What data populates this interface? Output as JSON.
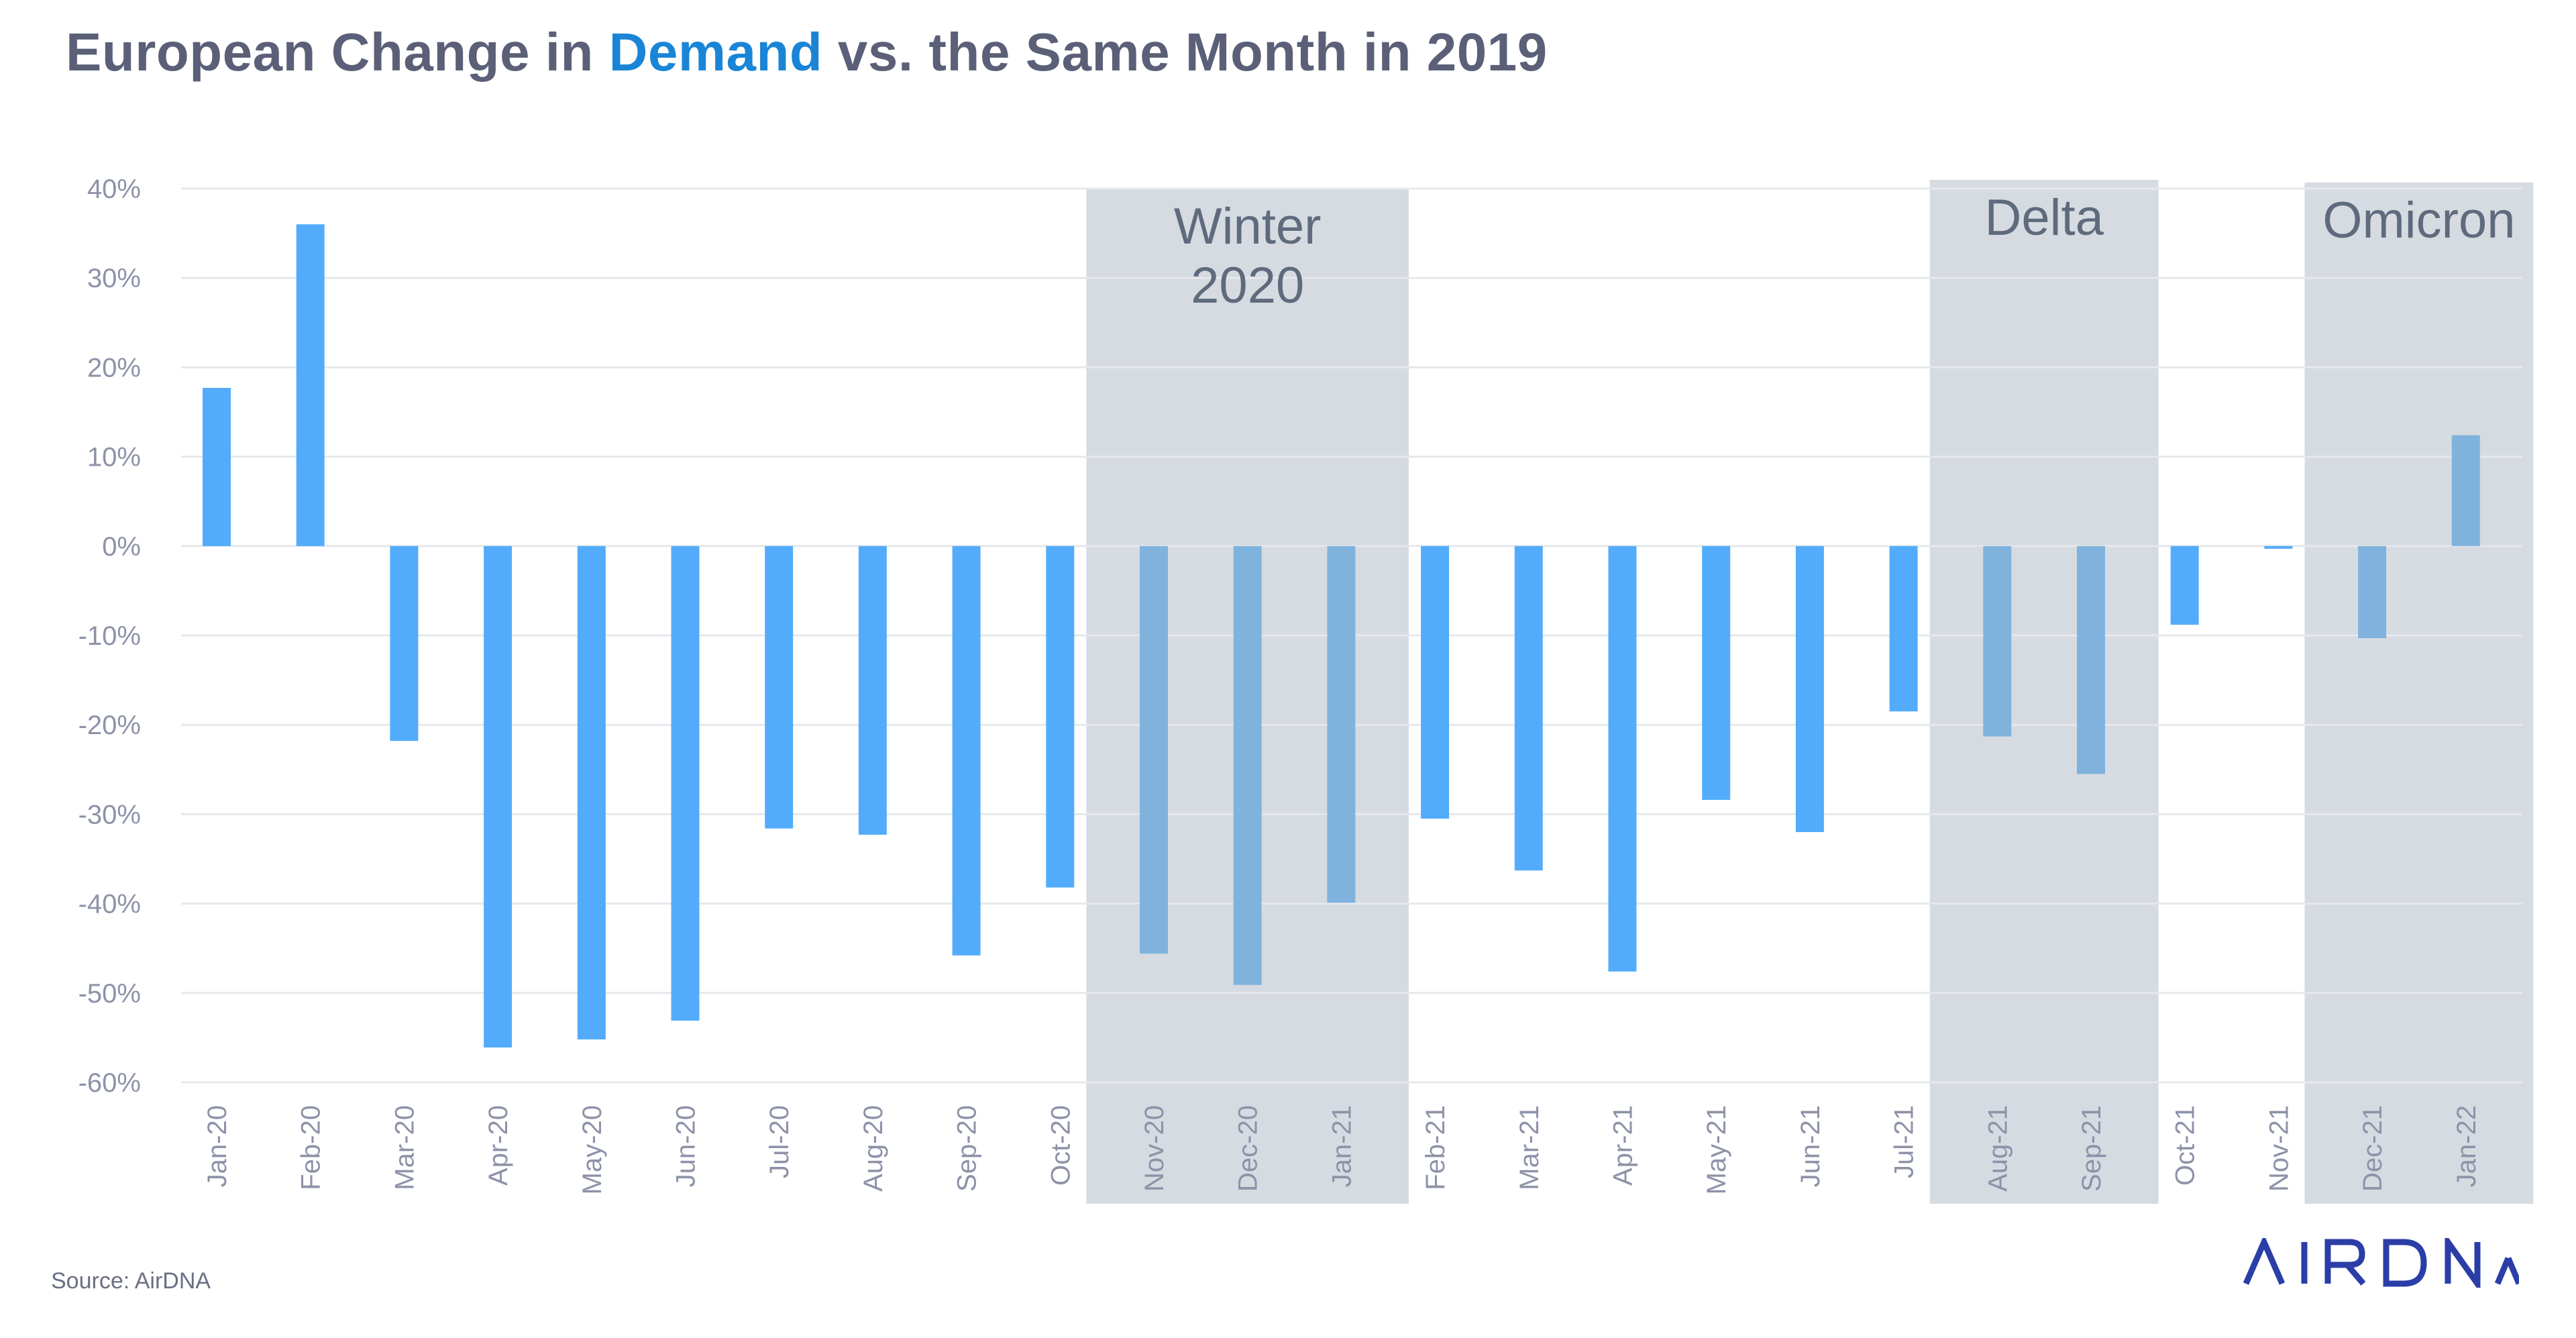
{
  "title": {
    "before": "European Change in ",
    "highlight": "Demand",
    "after": " vs. the Same Month in 2019"
  },
  "source": "Source: AirDNA",
  "logo_text": "AIRDNA",
  "colors": {
    "bar": "#52acfb",
    "bar_in_band": "#7fb3dd",
    "band": "#d5dbe1",
    "title": "#5b6078",
    "title_highlight": "#1a85d6",
    "axis_text": "#8d92a8",
    "grid": "#e6e8ec",
    "logo": "#2b3ea8"
  },
  "chart_data": {
    "type": "bar",
    "title": "European Change in Demand vs. the Same Month in 2019",
    "categories": [
      "Jan-20",
      "Feb-20",
      "Mar-20",
      "Apr-20",
      "May-20",
      "Jun-20",
      "Jul-20",
      "Aug-20",
      "Sep-20",
      "Oct-20",
      "Nov-20",
      "Dec-20",
      "Jan-21",
      "Feb-21",
      "Mar-21",
      "Apr-21",
      "May-21",
      "Jun-21",
      "Jul-21",
      "Aug-21",
      "Sep-21",
      "Oct-21",
      "Nov-21",
      "Dec-21",
      "Jan-22"
    ],
    "values": [
      17.7,
      36,
      -21.8,
      -56.1,
      -55.2,
      -53.1,
      -31.6,
      -32.3,
      -45.8,
      -38.2,
      -45.6,
      -49.1,
      -39.9,
      -30.5,
      -36.3,
      -47.6,
      -28.4,
      -32,
      -18.5,
      -21.3,
      -25.5,
      -8.8,
      -0.3,
      -10.3,
      12.4
    ],
    "ylim": [
      -60,
      40
    ],
    "yticks": [
      40,
      30,
      20,
      10,
      0,
      -10,
      -20,
      -30,
      -40,
      -50,
      -60
    ],
    "ytick_labels": [
      "40%",
      "30%",
      "20%",
      "10%",
      "0%",
      "-10%",
      "-20%",
      "-30%",
      "-40%",
      "-50%",
      "-60%"
    ],
    "grid": true,
    "shaded_periods": [
      {
        "label_lines": [
          "Winter",
          "2020"
        ],
        "start": "Nov-20",
        "end": "Jan-21"
      },
      {
        "label_lines": [
          "Delta"
        ],
        "start": "Aug-21",
        "end": "Sep-21"
      },
      {
        "label_lines": [
          "Omicron"
        ],
        "start": "Dec-21",
        "end": "Jan-22"
      }
    ]
  }
}
